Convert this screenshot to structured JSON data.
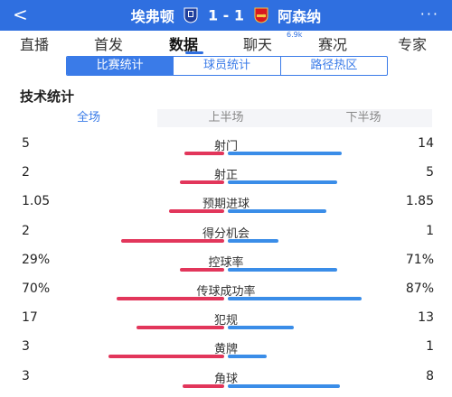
{
  "header": {
    "back_glyph": "<",
    "home_team": "埃弗顿",
    "score": "1 - 1",
    "away_team": "阿森纳",
    "more_glyph": "···",
    "home_crest_icon": "everton-crest-icon",
    "away_crest_icon": "arsenal-crest-icon",
    "bar_color": "#2f6fe0"
  },
  "nav": {
    "tabs": [
      {
        "label": "直播"
      },
      {
        "label": "首发"
      },
      {
        "label": "数据"
      },
      {
        "label": "聊天",
        "badge": "6.9k"
      },
      {
        "label": "赛况"
      },
      {
        "label": "专家"
      }
    ],
    "active_index": 2
  },
  "segment": {
    "items": [
      "比赛统计",
      "球员统计",
      "路径热区"
    ],
    "active_index": 0
  },
  "section_title": "技术统计",
  "period": {
    "items": [
      "全场",
      "上半场",
      "下半场"
    ],
    "active_index": 0
  },
  "stats": [
    {
      "label": "射门",
      "left": "5",
      "right": "14",
      "left_share": 0.26,
      "right_share": 0.74
    },
    {
      "label": "射正",
      "left": "2",
      "right": "5",
      "left_share": 0.29,
      "right_share": 0.71
    },
    {
      "label": "预期进球",
      "left": "1.05",
      "right": "1.85",
      "left_share": 0.36,
      "right_share": 0.64
    },
    {
      "label": "得分机会",
      "left": "2",
      "right": "1",
      "left_share": 0.67,
      "right_share": 0.33
    },
    {
      "label": "控球率",
      "left": "29%",
      "right": "71%",
      "left_share": 0.29,
      "right_share": 0.71
    },
    {
      "label": "传球成功率",
      "left": "70%",
      "right": "87%",
      "left_share": 0.7,
      "right_share": 0.87
    },
    {
      "label": "犯规",
      "left": "17",
      "right": "13",
      "left_share": 0.57,
      "right_share": 0.43
    },
    {
      "label": "黄牌",
      "left": "3",
      "right": "1",
      "left_share": 0.75,
      "right_share": 0.25
    },
    {
      "label": "角球",
      "left": "3",
      "right": "8",
      "left_share": 0.27,
      "right_share": 0.73
    }
  ],
  "colors": {
    "home": "#e2365b",
    "away": "#3a8de8",
    "accent": "#3a7be8"
  }
}
